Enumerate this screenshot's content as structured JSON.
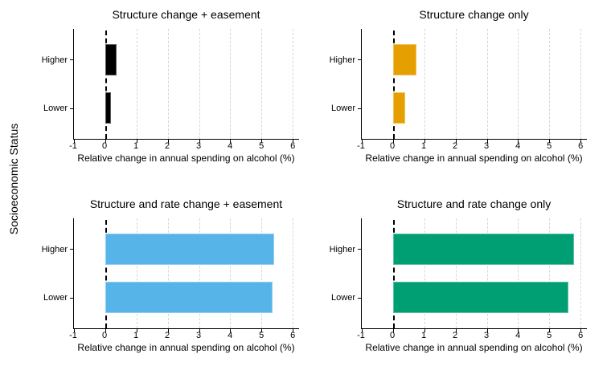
{
  "figure": {
    "ylabel": "Socioeconomic Status"
  },
  "chart_data": {
    "type": "bar",
    "orientation": "horizontal",
    "categories": [
      "Higher",
      "Lower"
    ],
    "x_ticks": [
      -1,
      0,
      1,
      2,
      3,
      4,
      5,
      6
    ],
    "xlim": [
      -1,
      6.2
    ],
    "xlabel": "Relative change in annual spending on alcohol (%)",
    "ylabel": "Socioeconomic Status",
    "zero_line_x": 0,
    "grid": "vertical-dashed",
    "legend": "none",
    "panels": [
      {
        "title": "Structure change + easement",
        "color": "#000000",
        "values": [
          0.37,
          0.18
        ]
      },
      {
        "title": "Structure change only",
        "color": "#E69F00",
        "values": [
          0.75,
          0.38
        ]
      },
      {
        "title": "Structure and rate change + easement",
        "color": "#56B4E9",
        "values": [
          5.4,
          5.35
        ]
      },
      {
        "title": "Structure and rate change only",
        "color": "#009E73",
        "values": [
          5.8,
          5.6
        ]
      }
    ]
  }
}
